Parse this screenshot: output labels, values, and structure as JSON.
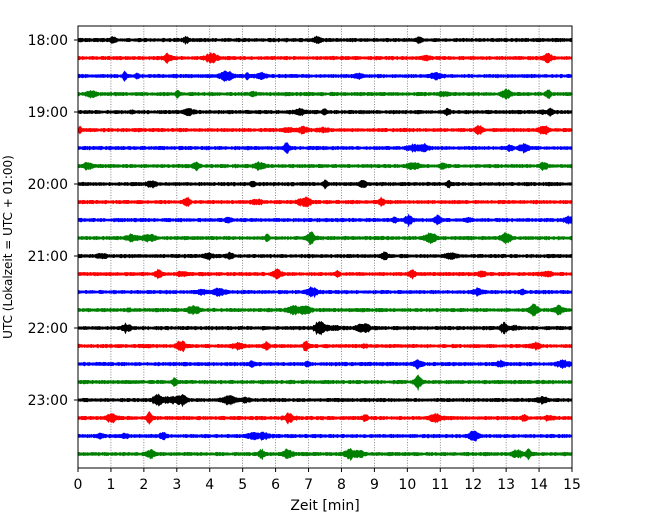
{
  "chart_data": {
    "type": "line",
    "subtype": "helicorder",
    "xlabel": "Zeit  [min]",
    "ylabel": "UTC (Lokalzeit = UTC + 01:00)",
    "xlim": [
      0,
      15
    ],
    "x_ticks": [
      0,
      1,
      2,
      3,
      4,
      5,
      6,
      7,
      8,
      9,
      10,
      11,
      12,
      13,
      14,
      15
    ],
    "x_tick_labels": [
      "0",
      "1",
      "2",
      "3",
      "4",
      "5",
      "6",
      "7",
      "8",
      "9",
      "10",
      "11",
      "12",
      "13",
      "14",
      "15"
    ],
    "x_grid": true,
    "y_tick_labels": [
      "18:00",
      "19:00",
      "20:00",
      "21:00",
      "22:00",
      "23:00"
    ],
    "trace_colors": [
      "#000000",
      "#ff0000",
      "#0000ff",
      "#008000"
    ],
    "trace_start_times": [
      "18:00",
      "18:15",
      "18:30",
      "18:45",
      "19:00",
      "19:15",
      "19:30",
      "19:45",
      "20:00",
      "20:15",
      "20:30",
      "20:45",
      "21:00",
      "21:15",
      "21:30",
      "21:45",
      "22:00",
      "22:15",
      "22:30",
      "22:45",
      "23:00",
      "23:15",
      "23:30",
      "23:45"
    ]
  }
}
